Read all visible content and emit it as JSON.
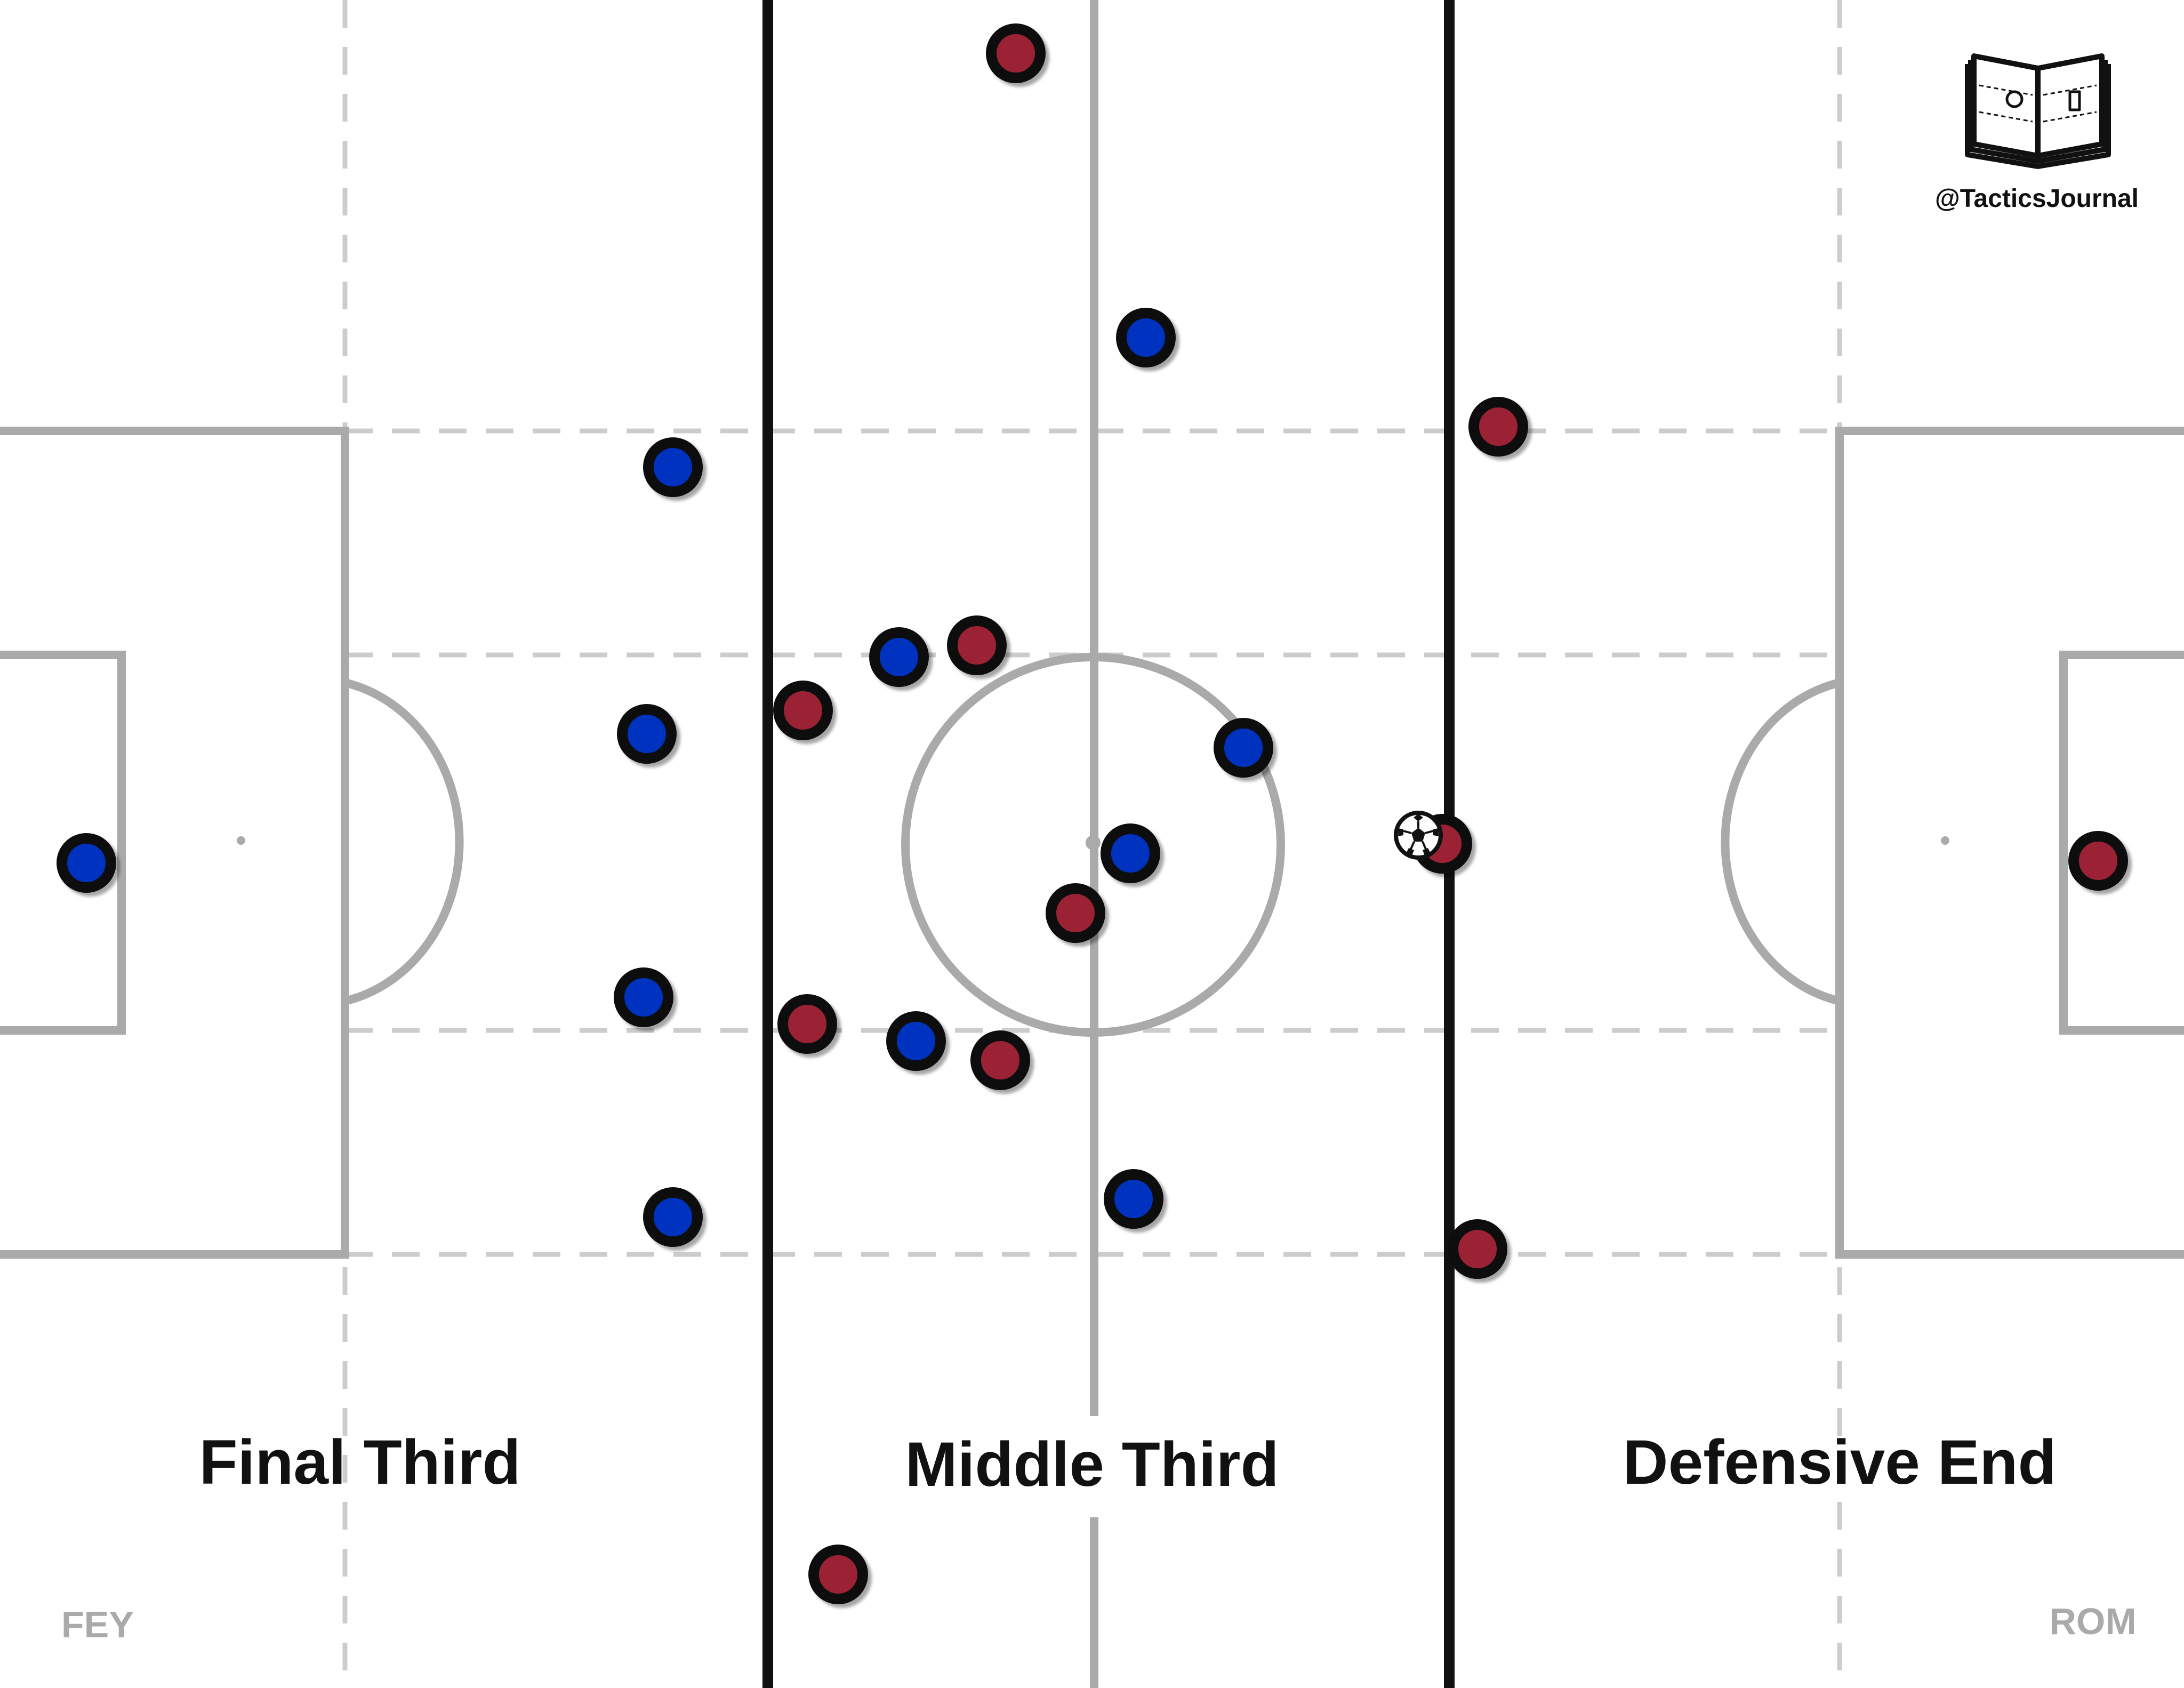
{
  "brand": {
    "handle": "@TacticsJournal",
    "logo_icon": "open-book-pitch-icon"
  },
  "zones": {
    "final_third": "Final Third",
    "middle_third": "Middle Third",
    "defensive_end": "Defensive End"
  },
  "teams": {
    "left": {
      "label": "FEY",
      "color": "#0033c0"
    },
    "right": {
      "label": "ROM",
      "color": "#9b2335"
    }
  },
  "colors": {
    "pitch_lines": "#aaaaaa",
    "dashed_lanes": "#cccccc",
    "third_dividers": "#111111",
    "background": "#ffffff"
  },
  "ball": {
    "icon": "soccer-ball-icon"
  }
}
